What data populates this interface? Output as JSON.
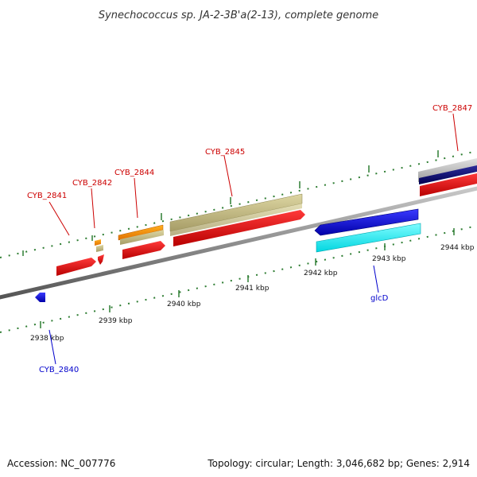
{
  "title": "Synechococcus sp. JA-2-3B'a(2-13), complete genome",
  "footer": {
    "accession": "Accession: NC_007776",
    "summary": "Topology: circular; Length: 3,046,682 bp; Genes: 2,914"
  },
  "colors": {
    "tick": "#2e7d32",
    "backbone": "#8a8a8a",
    "label_forward": "#cc0000",
    "label_reverse": "#0000cc"
  },
  "ticks": [
    "2938 kbp",
    "2939 kbp",
    "2940 kbp",
    "2941 kbp",
    "2942 kbp",
    "2943 kbp",
    "2944 kbp"
  ],
  "gene_labels": [
    "CYB_2841",
    "CYB_2842",
    "CYB_2844",
    "CYB_2845",
    "CYB_2847",
    "glcD",
    "CYB_2840"
  ]
}
